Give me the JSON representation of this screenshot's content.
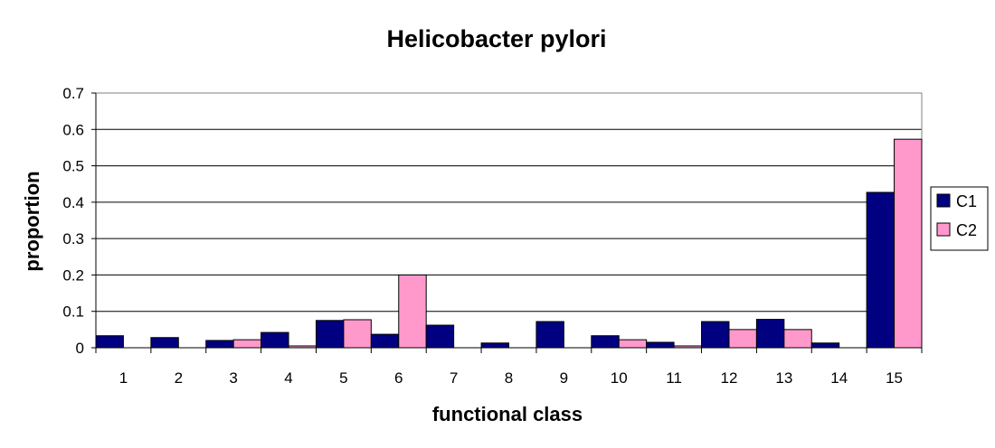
{
  "chart_data": {
    "type": "bar",
    "title": "Helicobacter pylori",
    "xlabel": "functional class",
    "ylabel": "proportion",
    "ylim": [
      0,
      0.7
    ],
    "yticks": [
      "0",
      "0.1",
      "0.2",
      "0.3",
      "0.4",
      "0.5",
      "0.6",
      "0.7"
    ],
    "categories": [
      "1",
      "2",
      "3",
      "4",
      "5",
      "6",
      "7",
      "8",
      "9",
      "10",
      "11",
      "12",
      "13",
      "14",
      "15"
    ],
    "series": [
      {
        "name": "C1",
        "color": "#000080",
        "values": [
          0.033,
          0.028,
          0.02,
          0.042,
          0.075,
          0.037,
          0.062,
          0.013,
          0.072,
          0.033,
          0.015,
          0.072,
          0.078,
          0.013,
          0.427
        ]
      },
      {
        "name": "C2",
        "color": "#ff99cc",
        "values": [
          0,
          0,
          0.022,
          0.005,
          0.077,
          0.2,
          0,
          0,
          0,
          0.022,
          0.005,
          0.05,
          0.05,
          0,
          0.573
        ]
      }
    ],
    "grid": true,
    "legend": "right"
  }
}
